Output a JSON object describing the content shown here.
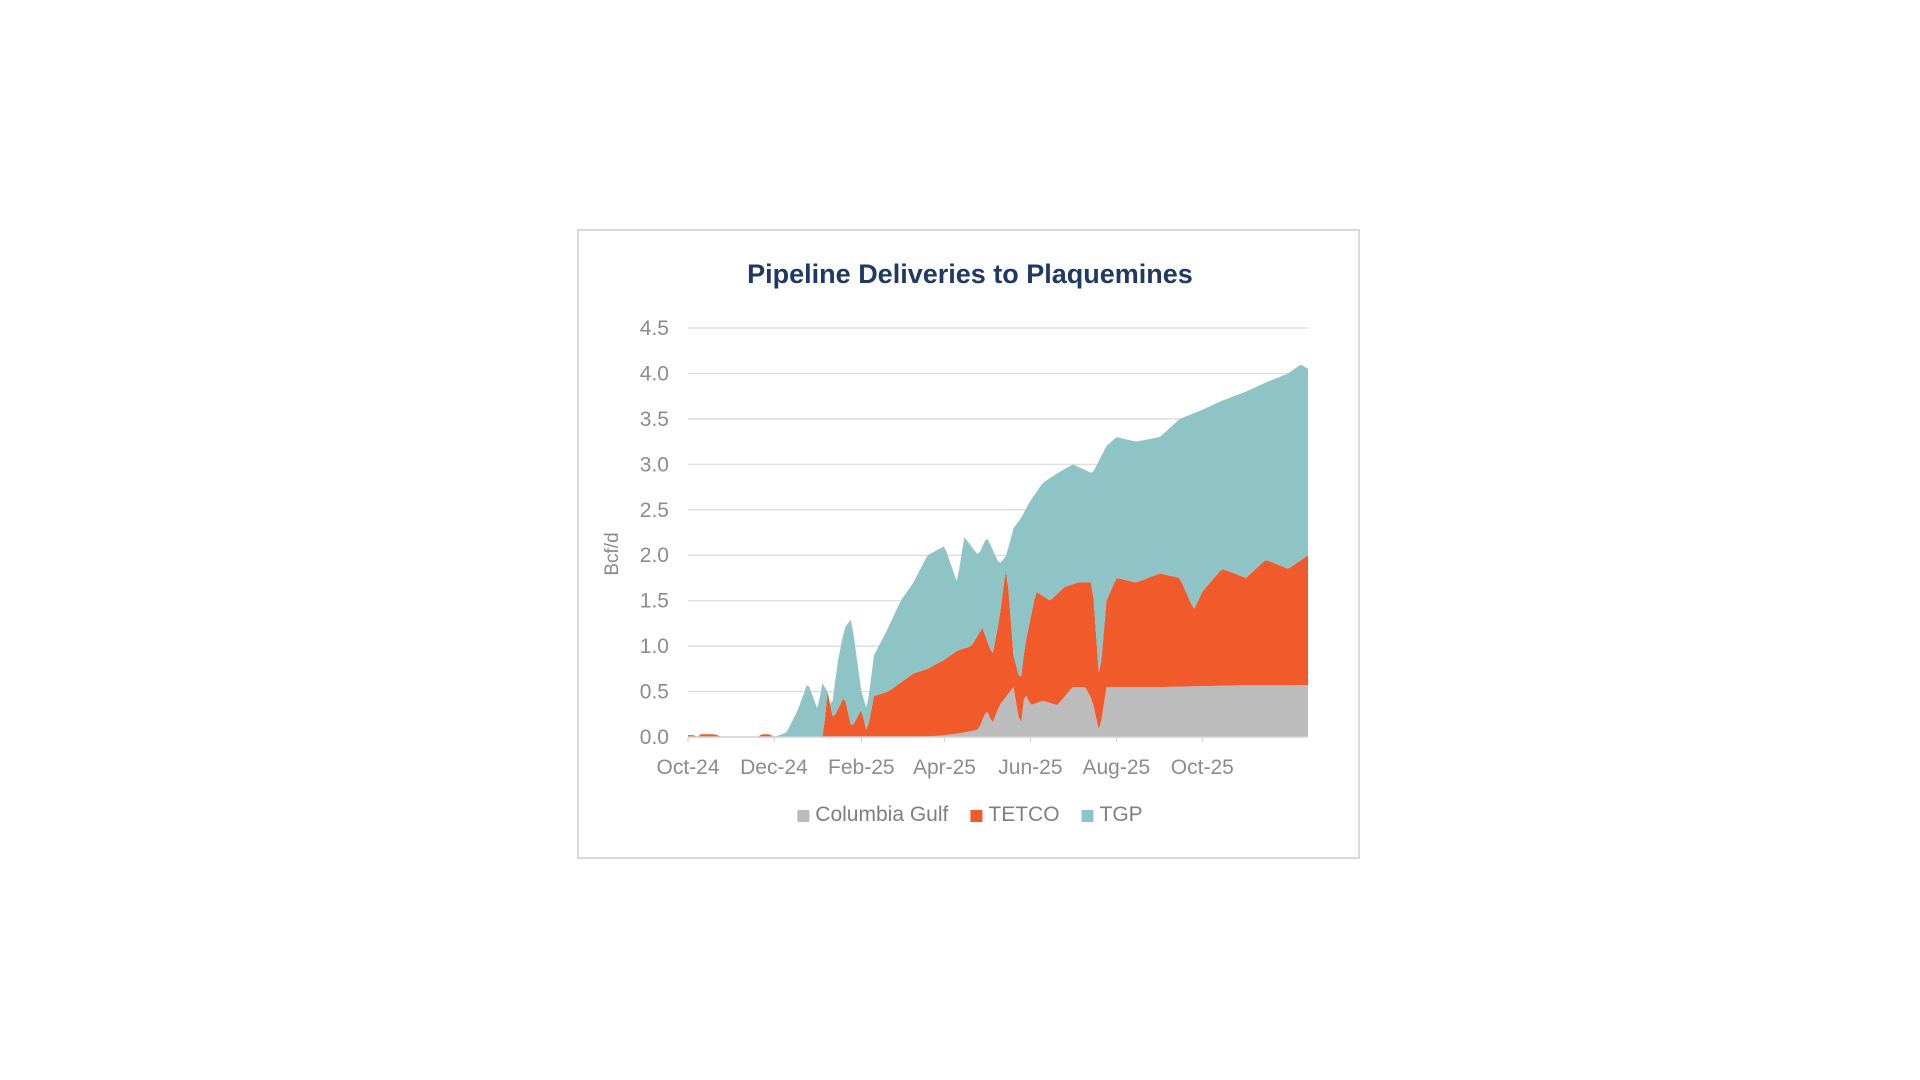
{
  "chart_data": {
    "type": "area",
    "stacked": true,
    "title": "Pipeline Deliveries to Plaquemines",
    "ylabel": "Bcf/d",
    "xlabel": "",
    "ylim": [
      0,
      4.5
    ],
    "yticks": [
      "0.0",
      "0.5",
      "1.0",
      "1.5",
      "2.0",
      "2.5",
      "3.0",
      "3.5",
      "4.0",
      "4.5"
    ],
    "xlim": [
      "2024-10-01",
      "2025-12-15"
    ],
    "x_tick_labels": [
      {
        "date": "2024-10-01",
        "label": "Oct-24"
      },
      {
        "date": "2024-12-01",
        "label": "Dec-24"
      },
      {
        "date": "2025-02-01",
        "label": "Feb-25"
      },
      {
        "date": "2025-04-01",
        "label": "Apr-25"
      },
      {
        "date": "2025-06-01",
        "label": "Jun-25"
      },
      {
        "date": "2025-08-01",
        "label": "Aug-25"
      },
      {
        "date": "2025-10-01",
        "label": "Oct-25"
      }
    ],
    "grid": true,
    "legend_position": "bottom",
    "series": [
      {
        "name": "Columbia Gulf",
        "color": "#bcbcbc",
        "points": [
          [
            "2024-10-01",
            0
          ],
          [
            "2025-03-15",
            0
          ],
          [
            "2025-04-01",
            0.02
          ],
          [
            "2025-04-15",
            0.05
          ],
          [
            "2025-04-25",
            0.08
          ],
          [
            "2025-05-01",
            0.3
          ],
          [
            "2025-05-05",
            0.15
          ],
          [
            "2025-05-10",
            0.35
          ],
          [
            "2025-05-15",
            0.45
          ],
          [
            "2025-05-20",
            0.55
          ],
          [
            "2025-05-25",
            0.1
          ],
          [
            "2025-05-28",
            0.5
          ],
          [
            "2025-06-01",
            0.35
          ],
          [
            "2025-06-10",
            0.4
          ],
          [
            "2025-06-20",
            0.35
          ],
          [
            "2025-07-01",
            0.55
          ],
          [
            "2025-07-10",
            0.55
          ],
          [
            "2025-07-15",
            0.4
          ],
          [
            "2025-07-20",
            0.05
          ],
          [
            "2025-07-25",
            0.55
          ],
          [
            "2025-08-01",
            0.55
          ],
          [
            "2025-09-01",
            0.55
          ],
          [
            "2025-10-01",
            0.56
          ],
          [
            "2025-11-01",
            0.57
          ],
          [
            "2025-12-15",
            0.57
          ]
        ]
      },
      {
        "name": "TETCO",
        "color": "#f15a2b",
        "points": [
          [
            "2024-10-01",
            0.02
          ],
          [
            "2024-10-05",
            0.02
          ],
          [
            "2024-10-08",
            0
          ],
          [
            "2024-10-10",
            0.03
          ],
          [
            "2024-10-20",
            0.03
          ],
          [
            "2024-10-25",
            0
          ],
          [
            "2024-11-20",
            0
          ],
          [
            "2024-11-22",
            0.03
          ],
          [
            "2024-11-28",
            0.03
          ],
          [
            "2024-12-01",
            0
          ],
          [
            "2025-01-05",
            0
          ],
          [
            "2025-01-08",
            0.5
          ],
          [
            "2025-01-12",
            0.2
          ],
          [
            "2025-01-20",
            0.45
          ],
          [
            "2025-01-25",
            0.1
          ],
          [
            "2025-02-01",
            0.3
          ],
          [
            "2025-02-05",
            0.05
          ],
          [
            "2025-02-10",
            0.45
          ],
          [
            "2025-02-20",
            0.5
          ],
          [
            "2025-03-01",
            0.6
          ],
          [
            "2025-03-10",
            0.7
          ],
          [
            "2025-03-20",
            0.75
          ],
          [
            "2025-04-01",
            0.85
          ],
          [
            "2025-04-10",
            0.95
          ],
          [
            "2025-04-20",
            1.0
          ],
          [
            "2025-04-28",
            1.2
          ],
          [
            "2025-05-05",
            0.9
          ],
          [
            "2025-05-10",
            1.3
          ],
          [
            "2025-05-15",
            1.9
          ],
          [
            "2025-05-20",
            0.9
          ],
          [
            "2025-05-25",
            0.6
          ],
          [
            "2025-05-28",
            1.0
          ],
          [
            "2025-06-01",
            1.3
          ],
          [
            "2025-06-05",
            1.6
          ],
          [
            "2025-06-15",
            1.5
          ],
          [
            "2025-06-25",
            1.65
          ],
          [
            "2025-07-05",
            1.7
          ],
          [
            "2025-07-15",
            1.7
          ],
          [
            "2025-07-20",
            0.6
          ],
          [
            "2025-07-25",
            1.5
          ],
          [
            "2025-08-01",
            1.75
          ],
          [
            "2025-08-15",
            1.7
          ],
          [
            "2025-09-01",
            1.8
          ],
          [
            "2025-09-15",
            1.75
          ],
          [
            "2025-09-25",
            1.4
          ],
          [
            "2025-10-01",
            1.6
          ],
          [
            "2025-10-15",
            1.85
          ],
          [
            "2025-11-01",
            1.75
          ],
          [
            "2025-11-15",
            1.95
          ],
          [
            "2025-12-01",
            1.85
          ],
          [
            "2025-12-15",
            2.0
          ]
        ]
      },
      {
        "name": "TGP",
        "color": "#8ec4c6",
        "points": [
          [
            "2024-10-01",
            0.02
          ],
          [
            "2024-10-05",
            0.02
          ],
          [
            "2024-10-08",
            0
          ],
          [
            "2024-10-10",
            0.03
          ],
          [
            "2024-10-20",
            0.03
          ],
          [
            "2024-10-25",
            0
          ],
          [
            "2024-11-20",
            0
          ],
          [
            "2024-11-22",
            0.03
          ],
          [
            "2024-11-28",
            0.03
          ],
          [
            "2024-12-01",
            0
          ],
          [
            "2024-12-10",
            0.05
          ],
          [
            "2024-12-18",
            0.3
          ],
          [
            "2024-12-25",
            0.6
          ],
          [
            "2025-01-01",
            0.3
          ],
          [
            "2025-01-05",
            0.65
          ],
          [
            "2025-01-10",
            0.2
          ],
          [
            "2025-01-15",
            0.8
          ],
          [
            "2025-01-20",
            1.2
          ],
          [
            "2025-01-25",
            1.3
          ],
          [
            "2025-02-01",
            0.5
          ],
          [
            "2025-02-05",
            0.3
          ],
          [
            "2025-02-10",
            0.9
          ],
          [
            "2025-02-20",
            1.2
          ],
          [
            "2025-03-01",
            1.5
          ],
          [
            "2025-03-10",
            1.7
          ],
          [
            "2025-03-20",
            2.0
          ],
          [
            "2025-04-01",
            2.1
          ],
          [
            "2025-04-10",
            1.7
          ],
          [
            "2025-04-15",
            2.2
          ],
          [
            "2025-04-25",
            2.0
          ],
          [
            "2025-05-01",
            2.2
          ],
          [
            "2025-05-10",
            1.9
          ],
          [
            "2025-05-15",
            2.0
          ],
          [
            "2025-05-20",
            2.3
          ],
          [
            "2025-05-25",
            2.4
          ],
          [
            "2025-06-01",
            2.6
          ],
          [
            "2025-06-10",
            2.8
          ],
          [
            "2025-06-20",
            2.9
          ],
          [
            "2025-07-01",
            3.0
          ],
          [
            "2025-07-15",
            2.9
          ],
          [
            "2025-07-25",
            3.2
          ],
          [
            "2025-08-01",
            3.3
          ],
          [
            "2025-08-15",
            3.25
          ],
          [
            "2025-09-01",
            3.3
          ],
          [
            "2025-09-15",
            3.5
          ],
          [
            "2025-10-01",
            3.6
          ],
          [
            "2025-10-15",
            3.7
          ],
          [
            "2025-11-01",
            3.8
          ],
          [
            "2025-11-15",
            3.9
          ],
          [
            "2025-12-01",
            4.0
          ],
          [
            "2025-12-10",
            4.1
          ],
          [
            "2025-12-15",
            4.05
          ]
        ]
      }
    ]
  }
}
